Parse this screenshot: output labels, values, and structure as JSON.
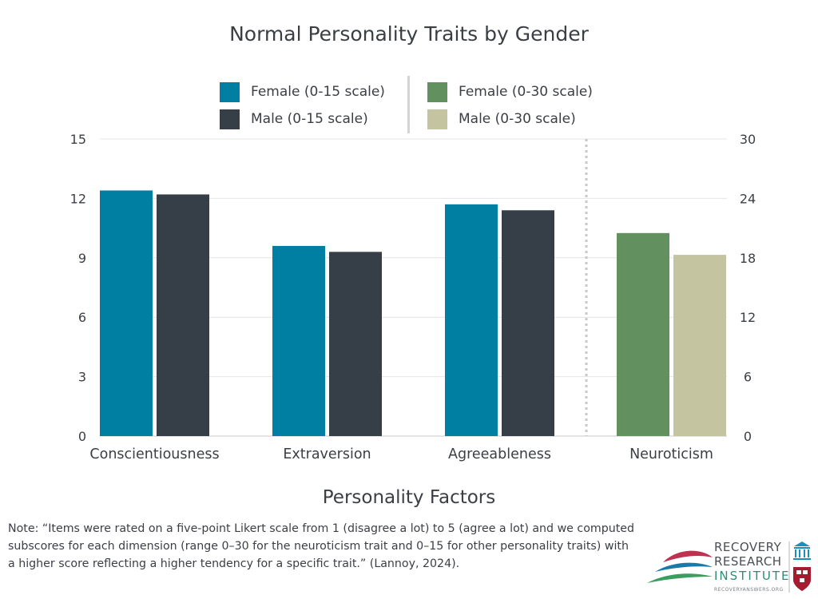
{
  "chart_data": {
    "type": "bar",
    "title": "Normal Personality Traits by Gender",
    "xlabel": "Personality Factors",
    "ylabel": "",
    "categories": [
      "Conscientiousness",
      "Extraversion",
      "Agreeableness",
      "Neuroticism"
    ],
    "left_axis": {
      "ylim": [
        0,
        15
      ],
      "ticks": [
        0,
        3,
        6,
        9,
        12,
        15
      ]
    },
    "right_axis": {
      "ylim": [
        0,
        30
      ],
      "ticks": [
        0,
        6,
        12,
        18,
        24,
        30
      ]
    },
    "series": [
      {
        "name": "Female (0-15 scale)",
        "axis": "left",
        "color": "#017fa3",
        "values": [
          12.4,
          9.6,
          11.7,
          null
        ]
      },
      {
        "name": "Male (0-15 scale)",
        "axis": "left",
        "color": "#363f47",
        "values": [
          12.2,
          9.3,
          11.4,
          null
        ]
      },
      {
        "name": "Female (0-30 scale)",
        "axis": "right",
        "color": "#63905f",
        "values": [
          null,
          null,
          null,
          20.5
        ]
      },
      {
        "name": "Male (0-30 scale)",
        "axis": "right",
        "color": "#c4c4a0",
        "values": [
          null,
          null,
          null,
          18.3
        ]
      }
    ],
    "grid": true,
    "legend_position": "top"
  },
  "note": "Note: “Items were rated on a five-point Likert scale from 1 (disagree a lot) to 5 (agree a lot) and we computed subscores for each dimension (range 0–30 for the neuroticism trait and 0–15 for other personality traits) with a higher score reflecting a higher tendency for a specific trait.” (Lannoy, 2024).",
  "logo": {
    "line1": "RECOVERY",
    "line2": "RESEARCH",
    "line3": "INSTITUTE",
    "url": "RECOVERYANSWERS.ORG"
  }
}
